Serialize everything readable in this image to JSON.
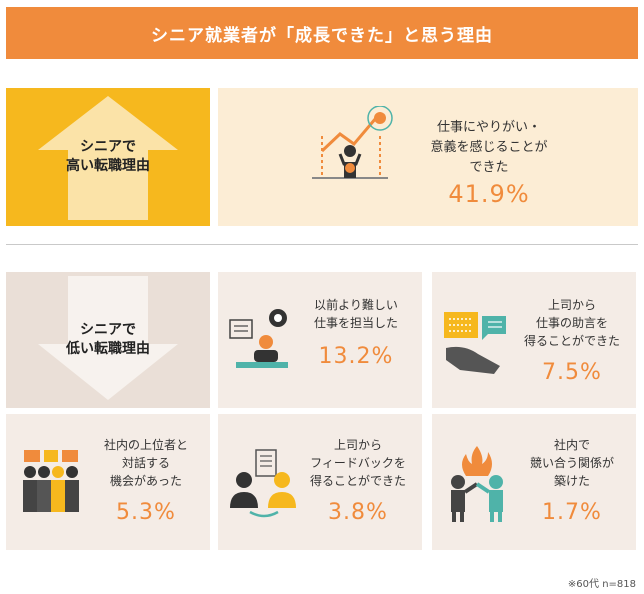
{
  "title": "シニア就業者が「成長できた」と思う理由",
  "high_label": "シニアで\n高い転職理由",
  "low_label": "シニアで\n低い転職理由",
  "feature": {
    "desc": "仕事にやりがい・\n意義を感じることが\nできた",
    "pct": "41.9%"
  },
  "cards": [
    {
      "desc": "以前より難しい\n仕事を担当した",
      "pct": "13.2%"
    },
    {
      "desc": "上司から\n仕事の助言を\n得ることができた",
      "pct": "7.5%"
    },
    {
      "desc": "社内の上位者と\n対話する\n機会があった",
      "pct": "5.3%"
    },
    {
      "desc": "上司から\nフィードバックを\n得ることができた",
      "pct": "3.8%"
    },
    {
      "desc": "社内で\n競い合う関係が\n築けた",
      "pct": "1.7%"
    }
  ],
  "colors": {
    "orange": "#f08b3c",
    "yellow": "#f6b81e",
    "teal": "#4fb3a9"
  },
  "footnote": "※60代 n=818"
}
